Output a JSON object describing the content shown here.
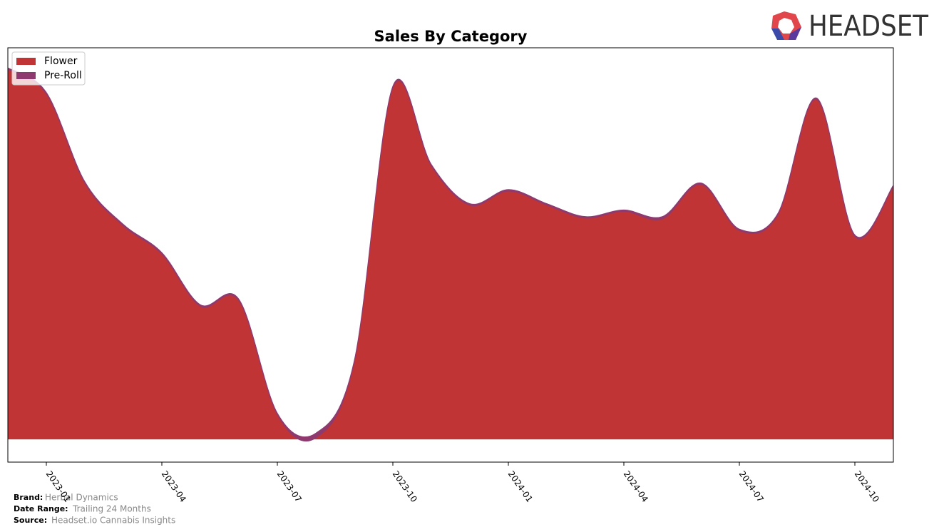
{
  "chart_data": {
    "type": "area",
    "title": "Sales By Category",
    "x": [
      "2022-12",
      "2023-01",
      "2023-02",
      "2023-03",
      "2023-04",
      "2023-05",
      "2023-06",
      "2023-07",
      "2023-08",
      "2023-09",
      "2023-10",
      "2023-11",
      "2023-12",
      "2024-01",
      "2024-02",
      "2024-03",
      "2024-04",
      "2024-05",
      "2024-06",
      "2024-07",
      "2024-08",
      "2024-09",
      "2024-10",
      "2024-11"
    ],
    "xlim": [
      "2022-12",
      "2024-11"
    ],
    "xticks": [
      "2023-01",
      "2023-04",
      "2023-07",
      "2023-10",
      "2024-01",
      "2024-04",
      "2024-07",
      "2024-10"
    ],
    "ylim": [
      -5.8,
      100
    ],
    "stacked": true,
    "legend": "upper left",
    "series": [
      {
        "name": "Flower",
        "color": "#c13435",
        "values": [
          94.5,
          88.2,
          65.4,
          54.5,
          47.3,
          34,
          35.4,
          6.3,
          0.4,
          19.8,
          89.8,
          69.8,
          59.8,
          63.4,
          59.8,
          56.5,
          58.2,
          56.3,
          65.1,
          53.3,
          57.3,
          86.8,
          51.8,
          64.5
        ]
      },
      {
        "name": "Pre-Roll",
        "color": "#8e3a6e",
        "values": [
          0.4,
          0.4,
          0.4,
          0.4,
          0.4,
          0.4,
          0.4,
          0.4,
          1.2,
          0.4,
          0.4,
          0.4,
          0.4,
          0.4,
          0.4,
          0.4,
          0.4,
          0.6,
          0.4,
          0.4,
          0.4,
          0.4,
          0.4,
          0.4
        ]
      }
    ]
  },
  "logo": "HEADSET",
  "footer": {
    "brand_label": "Brand:",
    "brand": "Herbal Dynamics",
    "date_label": "Date Range:",
    "date": "Trailing 24 Months",
    "source_label": "Source:",
    "source": "Headset.io Cannabis Insights"
  }
}
